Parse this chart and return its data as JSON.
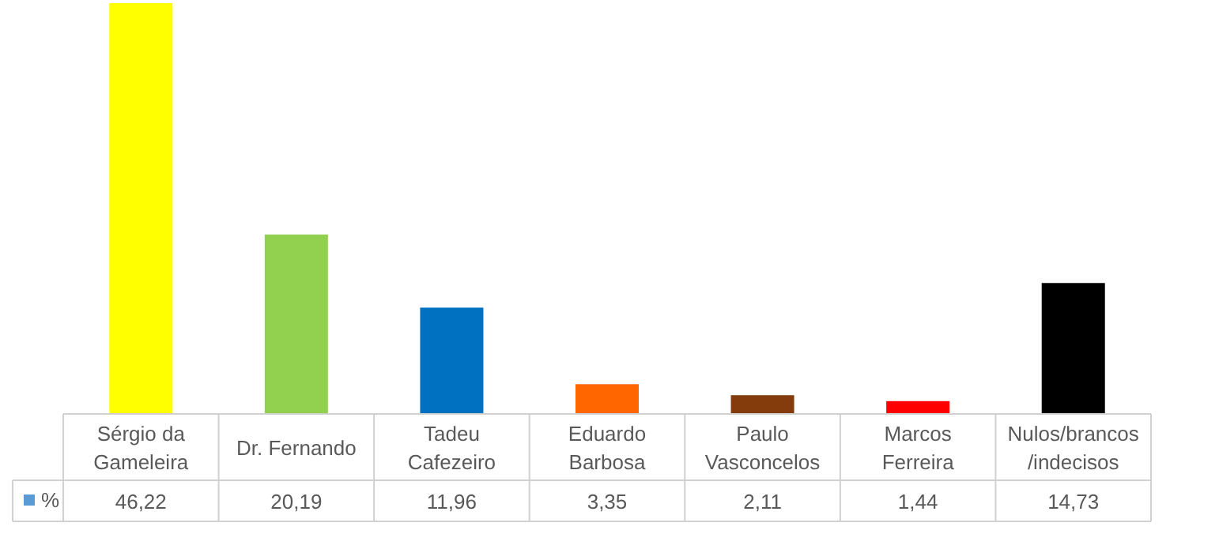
{
  "chart_data": {
    "type": "bar",
    "categories": [
      "Sérgio da\nGameleira",
      "Dr. Fernando",
      "Tadeu\nCafezeiro",
      "Eduardo\nBarbosa",
      "Paulo\nVasconcelos",
      "Marcos\nFerreira",
      "Nulos/brancos\n/indecisos"
    ],
    "series": [
      {
        "name": "%",
        "color": "#5b9bd5",
        "colors": [
          "#ffff00",
          "#92d050",
          "#0070c0",
          "#ff6600",
          "#843c0c",
          "#ff0000",
          "#000000"
        ],
        "values": [
          46.22,
          20.19,
          11.96,
          3.35,
          2.11,
          1.44,
          14.73
        ],
        "value_labels": [
          "46,22",
          "20,19",
          "11,96",
          "3,35",
          "2,11",
          "1,44",
          "14,73"
        ]
      }
    ],
    "data_labels": true,
    "legend": "bottom"
  }
}
